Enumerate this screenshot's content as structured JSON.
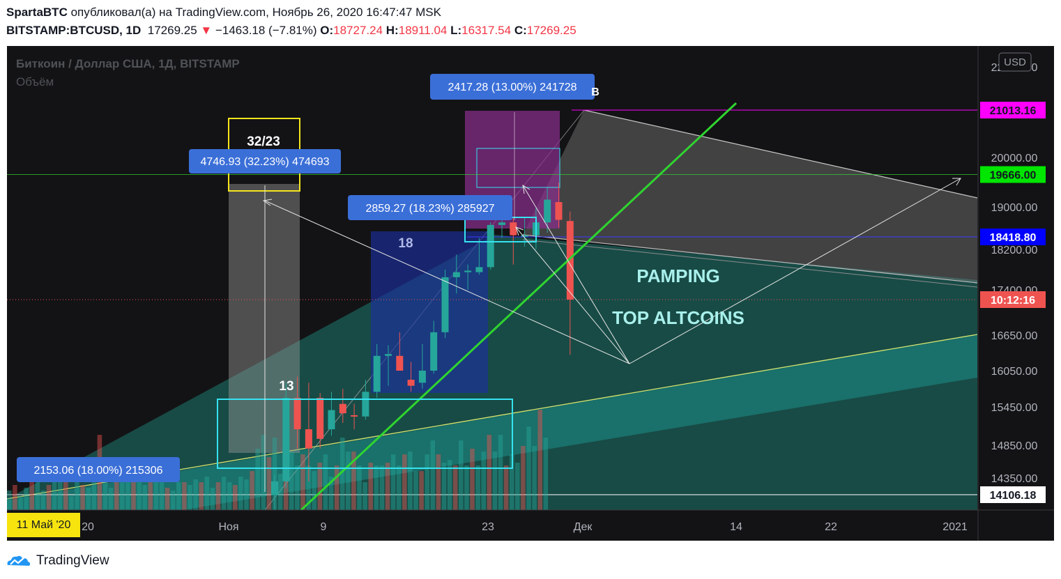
{
  "header": {
    "author": "SpartaBTC",
    "published_text": "опубликовал(а) на TradingView.com, Ноябрь 26, 2020 16:47:47 MSK",
    "symbol": "BITSTAMP:BTCUSD, 1D",
    "last": "17269.25",
    "change": "−1463.18 (−7.81%)",
    "o_label": "O:",
    "o_value": "18727.24",
    "h_label": "H:",
    "h_value": "18911.04",
    "l_label": "L:",
    "l_value": "16317.54",
    "c_label": "C:",
    "c_value": "17269.25",
    "down_arrow": "▼"
  },
  "legend": {
    "title": "Биткоин / Доллар США, 1Д, BITSTAMP",
    "volume": "Объём"
  },
  "currency_button": "USD",
  "footer": {
    "brand": "TradingView"
  },
  "cursor_date": "11 Май '20",
  "colors": {
    "background": "#131315",
    "bull": "#26a69a",
    "bear": "#ef5350",
    "green_line": "#2fd52f",
    "magenta": "#ff00ff",
    "label_blue": "#3b6fd8",
    "cyan_box": "#36e3f0",
    "yellow_box": "#f5e51c"
  },
  "chart_data": {
    "type": "candlestick",
    "symbol": "BITSTAMP:BTCUSD",
    "interval": "1D",
    "y_range": [
      13950,
      22400
    ],
    "y_axis_ticks": [
      "22000.00",
      "20000.00",
      "19000.00",
      "18200.00",
      "17400.00",
      "16650.00",
      "16050.00",
      "15450.00",
      "14850.00",
      "14350.00"
    ],
    "x_axis_ticks": [
      "20",
      "Ноя",
      "9",
      "23",
      "Дек",
      "14",
      "22",
      "2021"
    ],
    "price_tags": [
      {
        "text": "21013.16",
        "price": 21013.16,
        "bg": "#ff00ff",
        "fg": "#131722"
      },
      {
        "text": "19666.00",
        "price": 19666.0,
        "bg": "#00e600",
        "fg": "#131722"
      },
      {
        "text": "18418.80",
        "price": 18418.8,
        "bg": "#0000ff",
        "fg": "#ffffff"
      },
      {
        "text": "10:12:16",
        "price": 17269.25,
        "bg": "#ef5350",
        "fg": "#ffffff"
      },
      {
        "text": "14106.18",
        "price": 14106.18,
        "bg": "#ffffff",
        "fg": "#131722"
      }
    ],
    "candles": [
      {
        "o": 14100,
        "h": 14400,
        "l": 13800,
        "c": 14300
      },
      {
        "o": 14300,
        "h": 15850,
        "l": 14200,
        "c": 15600
      },
      {
        "o": 15600,
        "h": 15950,
        "l": 14800,
        "c": 15100
      },
      {
        "o": 15100,
        "h": 15850,
        "l": 14300,
        "c": 14800
      },
      {
        "o": 15600,
        "h": 15680,
        "l": 14800,
        "c": 14950
      },
      {
        "o": 15100,
        "h": 15700,
        "l": 15000,
        "c": 15400
      },
      {
        "o": 15500,
        "h": 15750,
        "l": 15200,
        "c": 15350
      },
      {
        "o": 15320,
        "h": 15500,
        "l": 15100,
        "c": 15300
      },
      {
        "o": 15300,
        "h": 15900,
        "l": 15250,
        "c": 15700
      },
      {
        "o": 15700,
        "h": 16500,
        "l": 15600,
        "c": 16300
      },
      {
        "o": 16300,
        "h": 16480,
        "l": 15800,
        "c": 16330
      },
      {
        "o": 16300,
        "h": 16700,
        "l": 16050,
        "c": 16050
      },
      {
        "o": 15900,
        "h": 16200,
        "l": 15700,
        "c": 15800
      },
      {
        "o": 15850,
        "h": 16500,
        "l": 15750,
        "c": 16050
      },
      {
        "o": 16050,
        "h": 16900,
        "l": 16000,
        "c": 16700
      },
      {
        "o": 16700,
        "h": 17800,
        "l": 16600,
        "c": 17650
      },
      {
        "o": 17650,
        "h": 18100,
        "l": 17350,
        "c": 17750
      },
      {
        "o": 17750,
        "h": 17900,
        "l": 17400,
        "c": 17780
      },
      {
        "o": 17750,
        "h": 18400,
        "l": 17700,
        "c": 17850
      },
      {
        "o": 17850,
        "h": 18700,
        "l": 17800,
        "c": 18650
      },
      {
        "o": 18650,
        "h": 18800,
        "l": 18400,
        "c": 18700
      },
      {
        "o": 18700,
        "h": 18800,
        "l": 17900,
        "c": 18450
      },
      {
        "o": 18450,
        "h": 18800,
        "l": 18250,
        "c": 18450
      },
      {
        "o": 18450,
        "h": 18980,
        "l": 18200,
        "c": 18700
      },
      {
        "o": 18700,
        "h": 19400,
        "l": 18500,
        "c": 19150
      },
      {
        "o": 19100,
        "h": 19500,
        "l": 18600,
        "c": 18750
      },
      {
        "o": 18727.24,
        "h": 18911.04,
        "l": 16317.54,
        "c": 17269.25
      }
    ],
    "volume_heights": [
      0.07,
      0.09,
      0.05,
      0.08,
      0.12,
      0.14,
      0.07,
      0.09,
      0.11,
      0.1,
      0.1,
      0.05,
      0.1,
      0.09,
      0.08,
      0.1,
      0.27,
      0.11,
      0.08,
      0.1,
      0.1,
      0.14,
      0.11,
      0.1,
      0.09,
      0.1,
      0.1,
      0.1,
      0.08,
      0.07,
      0.1,
      0.1,
      0.09,
      0.11,
      0.1,
      0.12,
      0.08,
      0.1,
      0.12,
      0.1,
      0.09,
      0.12,
      0.11,
      0.14,
      0.22,
      0.27,
      0.19,
      0.26,
      0.13,
      0.2,
      0.21,
      0.16,
      0.2,
      0.16,
      0.14,
      0.17,
      0.2,
      0.12,
      0.16,
      0.26,
      0.21,
      0.21,
      0.16,
      0.1,
      0.17,
      0.16,
      0.16,
      0.17,
      0.2,
      0.16,
      0.2,
      0.21,
      0.14,
      0.14,
      0.2,
      0.25,
      0.2,
      0.17,
      0.18,
      0.16,
      0.25,
      0.16,
      0.22,
      0.16,
      0.21,
      0.27,
      0.21,
      0.27,
      0.16,
      0.2,
      0.17,
      0.23,
      0.3,
      0.23,
      0.36,
      0.26
    ],
    "annotations": {
      "measure_labels": [
        "2417.28 (13.00%) 241728",
        "4746.93 (32.23%) 474693",
        "2859.27 (18.23%) 285927",
        "2153.06 (18.00%) 215306"
      ],
      "count_labels": [
        "32/23",
        "18",
        "13"
      ],
      "point_label": "B",
      "text_notes": [
        "PAMPING",
        "TOP ALTCOINS"
      ]
    }
  }
}
